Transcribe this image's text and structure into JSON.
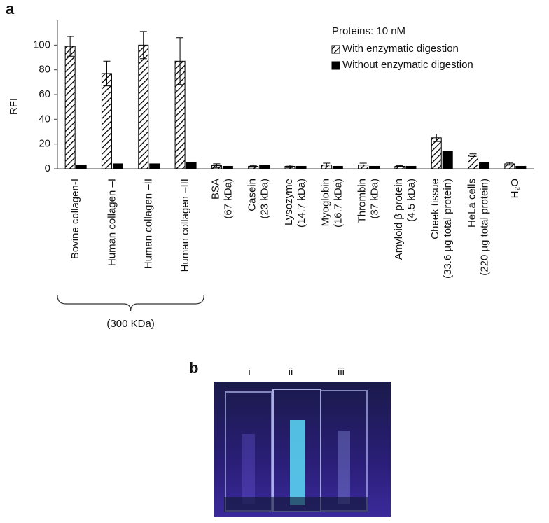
{
  "chart_data": {
    "type": "bar",
    "y_label": "RFI",
    "legend_title": "Proteins: 10 nM",
    "categories": [
      [
        "Bovine collagen-I"
      ],
      [
        "Human collagen –I"
      ],
      [
        "Human collagen –II"
      ],
      [
        "Human collagen –III"
      ],
      [
        "BSA",
        "(67 kDa)"
      ],
      [
        "Casein",
        "(23 kDa)"
      ],
      [
        "Lysozyme",
        "(14.7 kDa)"
      ],
      [
        "Myoglobin",
        "(16.7 kDa)"
      ],
      [
        "Thrombin",
        "(37 kDa)"
      ],
      [
        "Amyloid β protein",
        "(4.5 kDa)"
      ],
      [
        "Cheek tissue",
        "(33.6 µg total protein)"
      ],
      [
        "HeLa cells",
        "(220 µg total protein)"
      ],
      [
        "H₂O"
      ]
    ],
    "series": [
      {
        "name": "With enzymatic digestion",
        "color": "#000000",
        "hatch": true,
        "values": [
          99,
          77,
          100,
          87,
          2.5,
          2,
          2,
          3,
          3,
          2,
          25,
          11,
          4
        ],
        "errors": [
          8,
          10,
          11,
          19,
          1.5,
          0.7,
          1,
          1.5,
          1.5,
          0.5,
          3,
          1,
          1
        ]
      },
      {
        "name": "Without enzymatic digestion",
        "color": "#000000",
        "hatch": false,
        "values": [
          3,
          4,
          4,
          5,
          2,
          3,
          2,
          2,
          2,
          2,
          14,
          5,
          2
        ]
      }
    ],
    "ylim": [
      0,
      120
    ],
    "yticks": [
      0,
      20,
      40,
      60,
      80,
      100
    ],
    "bracket_label": "(300 KDa)",
    "bracket_categories": 4
  },
  "figure": {
    "panel_a": "a",
    "panel_b": "b",
    "cuvette_labels": [
      "i",
      "ii",
      "iii"
    ]
  }
}
